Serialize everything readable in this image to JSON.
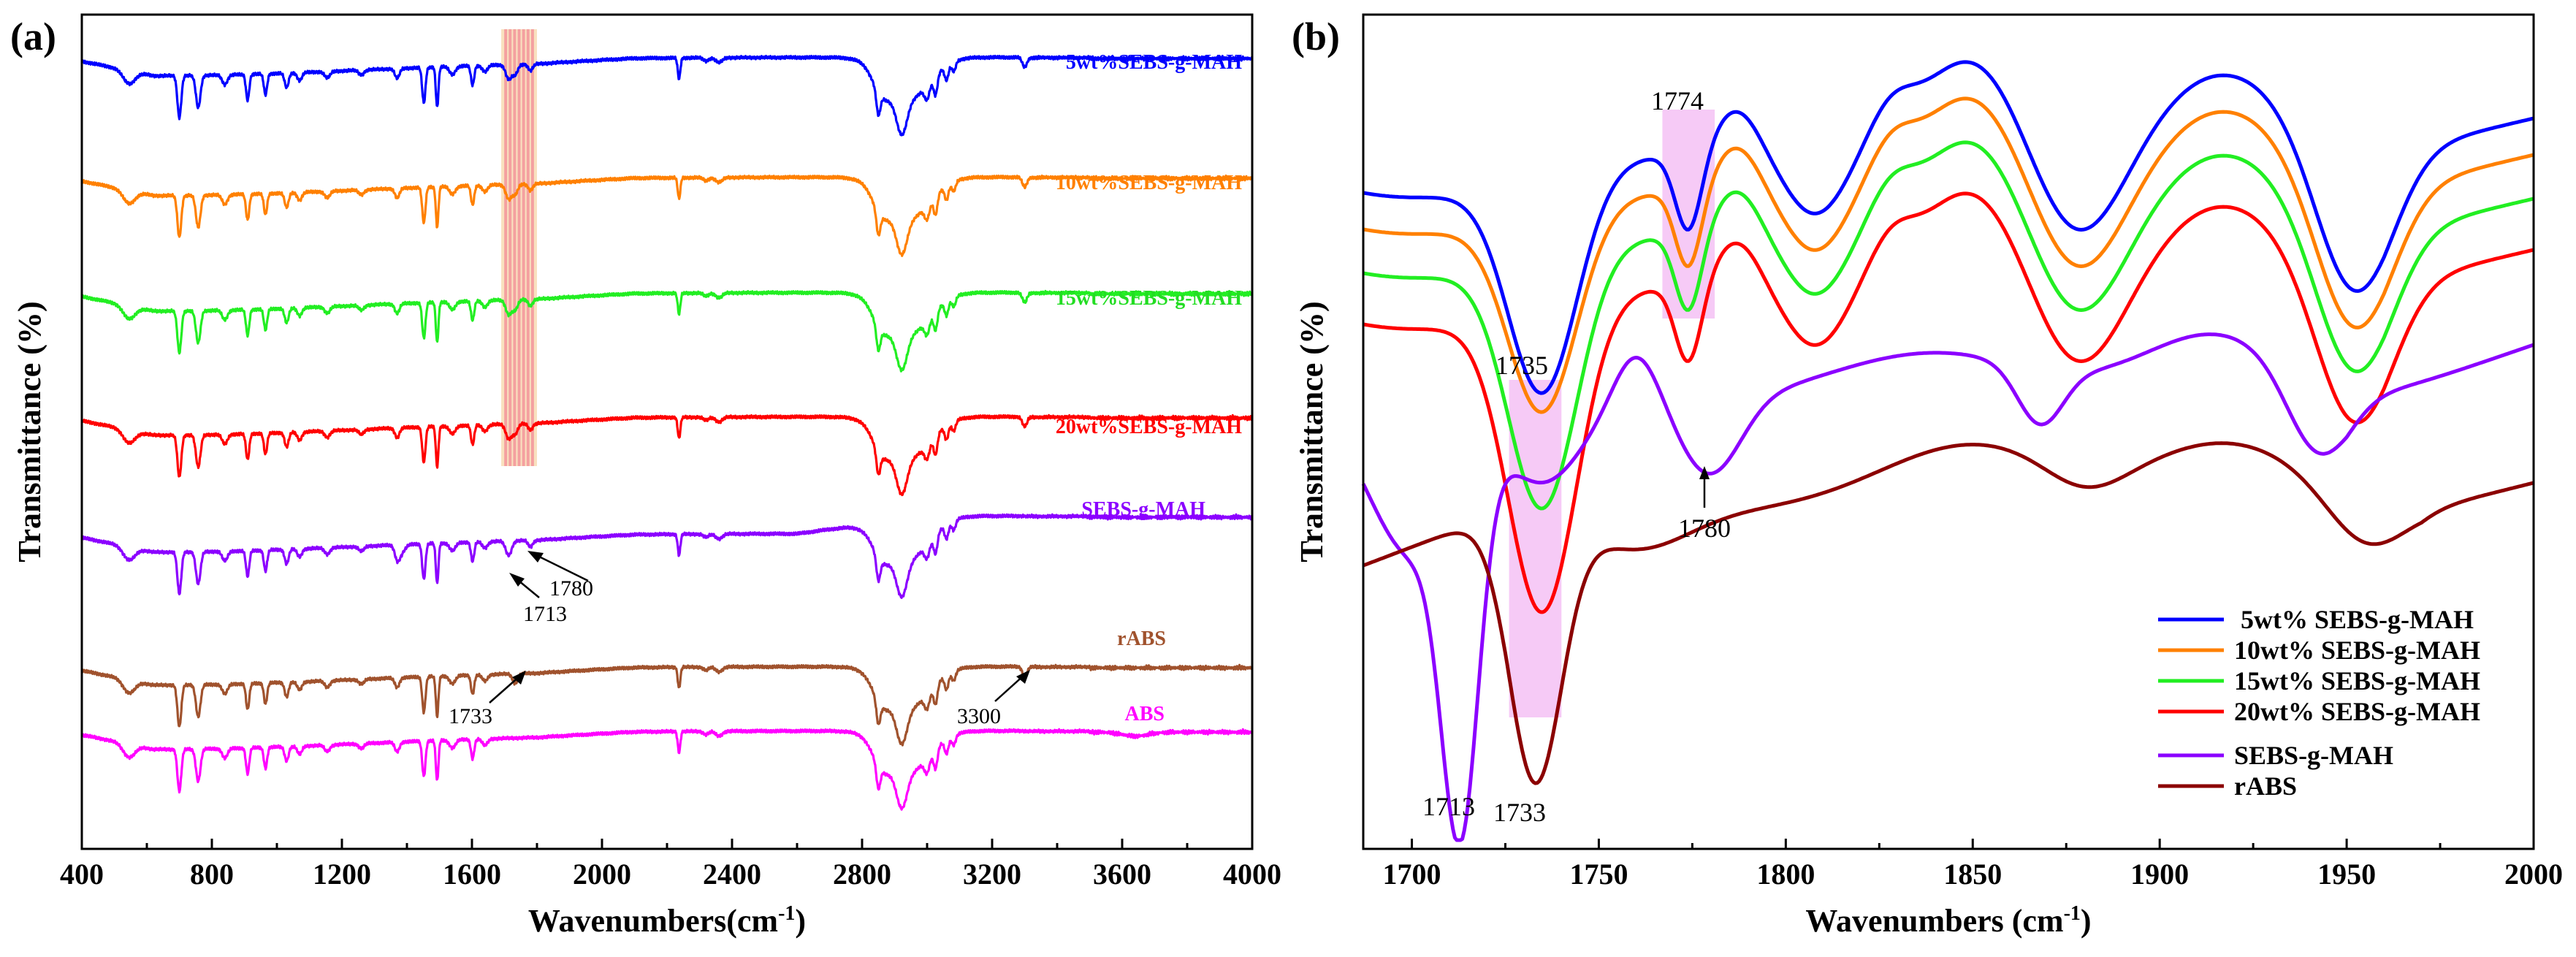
{
  "chart_data": [
    {
      "panel": "(a)",
      "type": "line",
      "title": "",
      "xlabel": "Wavenumbers(cm-1)",
      "xlabel_main": "Wavenumbers(cm",
      "xlabel_sup": "-1",
      "xlabel_tail": ")",
      "ylabel": "Transmittance (%)",
      "xlim": [
        400,
        4000
      ],
      "xticks": [
        400,
        800,
        1200,
        1600,
        2000,
        2400,
        2800,
        3200,
        3600,
        4000
      ],
      "highlight_band": [
        1690,
        1800
      ],
      "series": [
        {
          "name": "5wt%SEBS-g-MAH",
          "color": "#0000FF"
        },
        {
          "name": "10wt%SEBS-g-MAH",
          "color": "#FF8000"
        },
        {
          "name": "15wt%SEBS-g-MAH",
          "color": "#22EE22"
        },
        {
          "name": "20wt%SEBS-g-MAH",
          "color": "#FF0000"
        },
        {
          "name": "SEBS-g-MAH",
          "color": "#8B00FF"
        },
        {
          "name": "rABS",
          "color": "#A0522D"
        },
        {
          "name": "ABS",
          "color": "#FF00FF"
        }
      ],
      "annotations": [
        {
          "text": "1780",
          "x": 1780
        },
        {
          "text": "1713",
          "x": 1713
        },
        {
          "text": "1733",
          "x": 1733
        },
        {
          "text": "3300",
          "x": 3300
        }
      ]
    },
    {
      "panel": "(b)",
      "type": "line",
      "title": "",
      "xlabel": "Wavenumbers (cm-1)",
      "xlabel_main": "Wavenumbers (cm",
      "xlabel_sup": "-1",
      "xlabel_tail": ")",
      "ylabel": "Transmittance (%)",
      "xlim": [
        1687,
        2000
      ],
      "xticks": [
        1700,
        1750,
        1800,
        1850,
        1900,
        1950,
        2000
      ],
      "highlight_bands": [
        [
          1726,
          1740
        ],
        [
          1767,
          1781
        ]
      ],
      "series": [
        {
          "name": " 5wt% SEBS-g-MAH",
          "color": "#0000FF"
        },
        {
          "name": "10wt% SEBS-g-MAH",
          "color": "#FF8000"
        },
        {
          "name": "15wt% SEBS-g-MAH",
          "color": "#22EE22"
        },
        {
          "name": "20wt% SEBS-g-MAH",
          "color": "#FF0000"
        },
        {
          "name": "SEBS-g-MAH",
          "color": "#8B00FF"
        },
        {
          "name": "rABS",
          "color": "#8B0000"
        }
      ],
      "annotations": [
        {
          "text": "1774",
          "x": 1774
        },
        {
          "text": "1735",
          "x": 1735
        },
        {
          "text": "1780",
          "x": 1780
        },
        {
          "text": "1713",
          "x": 1713
        },
        {
          "text": "1733",
          "x": 1733
        }
      ]
    }
  ]
}
